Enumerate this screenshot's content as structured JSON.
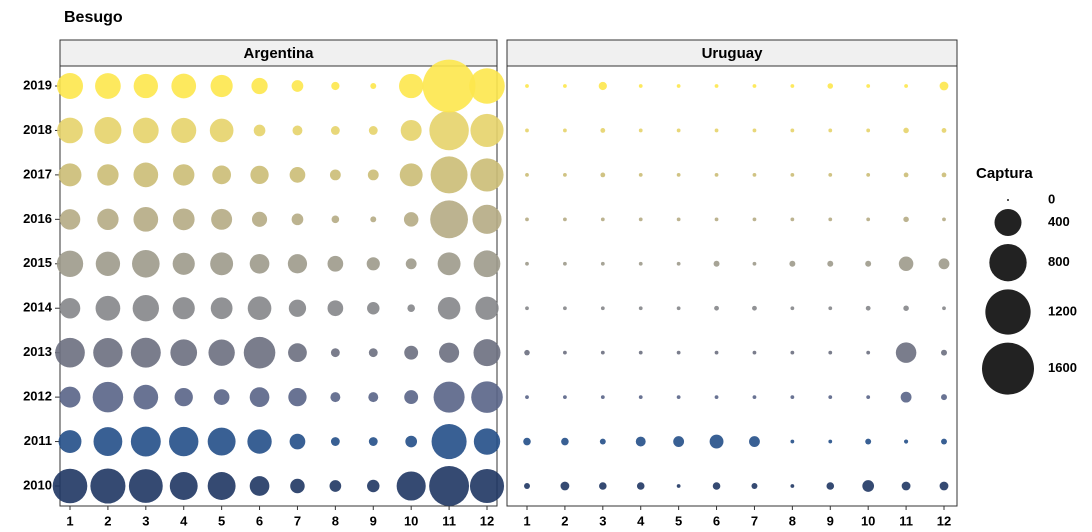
{
  "chart_data": {
    "type": "bubble",
    "title": "Besugo",
    "x": [
      1,
      2,
      3,
      4,
      5,
      6,
      7,
      8,
      9,
      10,
      11,
      12
    ],
    "rows": [
      {
        "name": "2010",
        "color": "#1f3663"
      },
      {
        "name": "2011",
        "color": "#234f88"
      },
      {
        "name": "2012",
        "color": "#596487"
      },
      {
        "name": "2013",
        "color": "#6c6f80"
      },
      {
        "name": "2014",
        "color": "#858689"
      },
      {
        "name": "2015",
        "color": "#9d9a8b"
      },
      {
        "name": "2016",
        "color": "#b5ab84"
      },
      {
        "name": "2017",
        "color": "#cbbc76"
      },
      {
        "name": "2018",
        "color": "#e5d36a"
      },
      {
        "name": "2019",
        "color": "#fde74c"
      }
    ],
    "panels": [
      {
        "name": "Argentina",
        "values": [
          [
            680,
            700,
            650,
            430,
            430,
            200,
            100,
            60,
            70,
            470,
            920,
            660
          ],
          [
            280,
            460,
            500,
            480,
            430,
            320,
            120,
            30,
            30,
            60,
            700,
            380
          ],
          [
            230,
            520,
            330,
            170,
            120,
            200,
            170,
            40,
            40,
            90,
            540,
            560
          ],
          [
            490,
            480,
            500,
            390,
            380,
            560,
            180,
            30,
            30,
            90,
            210,
            400
          ],
          [
            220,
            330,
            380,
            260,
            250,
            300,
            150,
            120,
            70,
            20,
            270,
            290
          ],
          [
            380,
            320,
            420,
            260,
            280,
            200,
            190,
            120,
            80,
            50,
            280,
            390
          ],
          [
            220,
            240,
            330,
            250,
            230,
            110,
            60,
            20,
            10,
            100,
            820,
            470
          ],
          [
            280,
            240,
            330,
            240,
            180,
            170,
            120,
            50,
            50,
            280,
            780,
            620
          ],
          [
            360,
            400,
            360,
            340,
            300,
            60,
            40,
            30,
            30,
            230,
            900,
            620
          ],
          [
            370,
            360,
            320,
            330,
            260,
            130,
            60,
            25,
            10,
            320,
            1650,
            720
          ]
        ]
      },
      {
        "name": "Uruguay",
        "values": [
          [
            10,
            30,
            20,
            20,
            2,
            20,
            10,
            2,
            20,
            60,
            30,
            30
          ],
          [
            20,
            20,
            10,
            40,
            50,
            90,
            50,
            2,
            2,
            10,
            3,
            10
          ],
          [
            2,
            2,
            2,
            2,
            2,
            2,
            2,
            2,
            2,
            2,
            50,
            10
          ],
          [
            8,
            2,
            2,
            2,
            2,
            2,
            2,
            2,
            2,
            2,
            220,
            10
          ],
          [
            2,
            2,
            2,
            2,
            2,
            5,
            5,
            2,
            2,
            5,
            8,
            2
          ],
          [
            2,
            2,
            2,
            2,
            2,
            10,
            2,
            10,
            10,
            10,
            100,
            50
          ],
          [
            2,
            2,
            2,
            2,
            2,
            2,
            2,
            2,
            2,
            2,
            8,
            2
          ],
          [
            2,
            2,
            5,
            2,
            2,
            2,
            2,
            2,
            2,
            2,
            5,
            5
          ],
          [
            2,
            2,
            5,
            2,
            2,
            2,
            2,
            2,
            2,
            2,
            8,
            5
          ],
          [
            2,
            2,
            25,
            2,
            2,
            2,
            2,
            2,
            8,
            2,
            2,
            30
          ]
        ]
      }
    ],
    "size_legend": {
      "title": "Captura",
      "breaks": [
        0,
        400,
        800,
        1200,
        1600
      ],
      "color": "#222222"
    }
  }
}
